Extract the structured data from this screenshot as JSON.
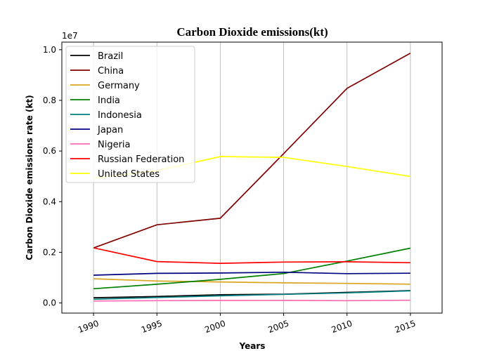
{
  "chart_data": {
    "type": "line",
    "title": "Carbon Dioxide emissions(kt)",
    "xlabel": "Years",
    "ylabel": "Carbon Dioxide emissions rate (kt)",
    "y_scale_label": "1e7",
    "x": [
      1990,
      1995,
      2000,
      2005,
      2010,
      2015
    ],
    "x_ticks": [
      "1990",
      "1995",
      "2000",
      "2005",
      "2010",
      "2015"
    ],
    "y_ticks": [
      "0.0",
      "0.2",
      "0.4",
      "0.6",
      "0.8",
      "1.0"
    ],
    "xlim": [
      1987.5,
      2017.5
    ],
    "ylim": [
      -400000,
      10300000
    ],
    "grid": "vertical",
    "legend_position": "top-left",
    "series": [
      {
        "name": "Brazil",
        "color": "#000000",
        "values": [
          208000,
          254000,
          327000,
          345000,
          419000,
          486000
        ]
      },
      {
        "name": "China",
        "color": "#800000",
        "values": [
          2173000,
          3088000,
          3346000,
          5897000,
          8475000,
          9861000
        ]
      },
      {
        "name": "Germany",
        "color": "#DAA520",
        "values": [
          955000,
          868000,
          830000,
          796000,
          773000,
          742000
        ]
      },
      {
        "name": "India",
        "color": "#008000",
        "values": [
          562000,
          738000,
          933000,
          1161000,
          1655000,
          2163000
        ]
      },
      {
        "name": "Indonesia",
        "color": "#008080",
        "values": [
          146000,
          215000,
          282000,
          340000,
          398000,
          480000
        ]
      },
      {
        "name": "Japan",
        "color": "#000080",
        "values": [
          1096000,
          1169000,
          1182000,
          1214000,
          1157000,
          1175000
        ]
      },
      {
        "name": "Nigeria",
        "color": "#FF69B4",
        "values": [
          76000,
          90000,
          100000,
          101000,
          92000,
          107000
        ]
      },
      {
        "name": "Russian Federation",
        "color": "#FF0000",
        "values": [
          2176000,
          1635000,
          1566000,
          1614000,
          1625000,
          1591000
        ]
      },
      {
        "name": "United States",
        "color": "#FFFF00",
        "values": [
          4929000,
          5223000,
          5781000,
          5749000,
          5389000,
          4995000
        ]
      }
    ]
  }
}
